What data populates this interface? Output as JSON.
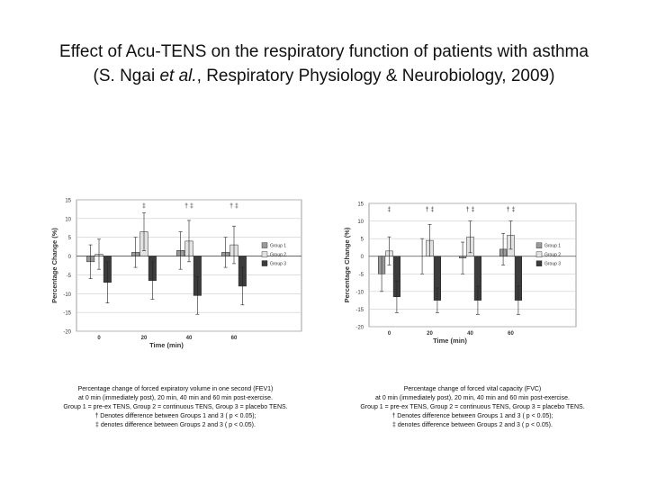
{
  "slide": {
    "title_line1": "Effect of Acu-TENS on the respiratory function of patients with asthma",
    "title_line2": [
      "(S. Ngai ",
      "et al.",
      ", Respiratory Physiology & Neurobiology, 2009)"
    ]
  },
  "chart_data": [
    {
      "type": "bar",
      "ylabel": "Percentage Change (%)",
      "xlabel": "Time (min)",
      "categories": [
        "0",
        "20",
        "40",
        "60"
      ],
      "series": [
        {
          "name": "Group 1",
          "color": "#9a9a9a",
          "values": [
            -1.5,
            1,
            1.5,
            1
          ],
          "errors": [
            4.5,
            4,
            5,
            4
          ]
        },
        {
          "name": "Group 2",
          "color": "#e2e2e2",
          "values": [
            0.5,
            6.5,
            4,
            3
          ],
          "errors": [
            4,
            5,
            5.5,
            5
          ]
        },
        {
          "name": "Group 3",
          "color": "#3c3c3c",
          "values": [
            -7,
            -6.5,
            -10.5,
            -8
          ],
          "errors": [
            5.5,
            5,
            5,
            5
          ]
        }
      ],
      "annotations": [
        null,
        "‡",
        "† ‡",
        "† ‡"
      ],
      "ylim": [
        -20,
        15
      ],
      "yticks": [
        -20,
        -15,
        -10,
        -5,
        0,
        5,
        10,
        15
      ],
      "caption": [
        "Percentage change of forced expiratory volume in one second (FEV1)",
        "at 0 min (immediately post), 20 min, 40 min and 60 min post-exercise.",
        "Group 1 = pre-ex TENS, Group 2 = continuous TENS, Group 3 = placebo TENS.",
        "† Denotes difference between Groups 1 and 3 ( p < 0.05);",
        "‡ denotes difference between Groups 2 and 3 ( p < 0.05)."
      ]
    },
    {
      "type": "bar",
      "ylabel": "Percentage Change (%)",
      "xlabel": "Time (min)",
      "categories": [
        "0",
        "20",
        "40",
        "60"
      ],
      "series": [
        {
          "name": "Group 1",
          "color": "#9a9a9a",
          "values": [
            -5,
            0,
            -0.5,
            2
          ],
          "errors": [
            5,
            5,
            4.5,
            4.5
          ]
        },
        {
          "name": "Group 2",
          "color": "#e2e2e2",
          "values": [
            1.5,
            4.5,
            5.5,
            6
          ],
          "errors": [
            4,
            4.5,
            4.5,
            4
          ]
        },
        {
          "name": "Group 3",
          "color": "#3c3c3c",
          "values": [
            -11.5,
            -12.5,
            -12.5,
            -12.5
          ],
          "errors": [
            4.5,
            3.5,
            4,
            4
          ]
        }
      ],
      "annotations": [
        "‡",
        "† ‡",
        "† ‡",
        "† ‡"
      ],
      "ylim": [
        -20,
        15
      ],
      "yticks": [
        -20,
        -15,
        -10,
        -5,
        0,
        5,
        10,
        15
      ],
      "caption": [
        "Percentage change of forced vital capacity (FVC)",
        "at 0 min (immediately post), 20 min, 40 min and 60 min post-exercise.",
        "Group 1 = pre-ex TENS, Group 2 = continuous TENS, Group 3 = placebo TENS.",
        "† Denotes difference between Groups 1 and 3 ( p < 0.05);",
        "‡ denotes difference between Groups 2 and 3 ( p < 0.05)."
      ]
    }
  ]
}
